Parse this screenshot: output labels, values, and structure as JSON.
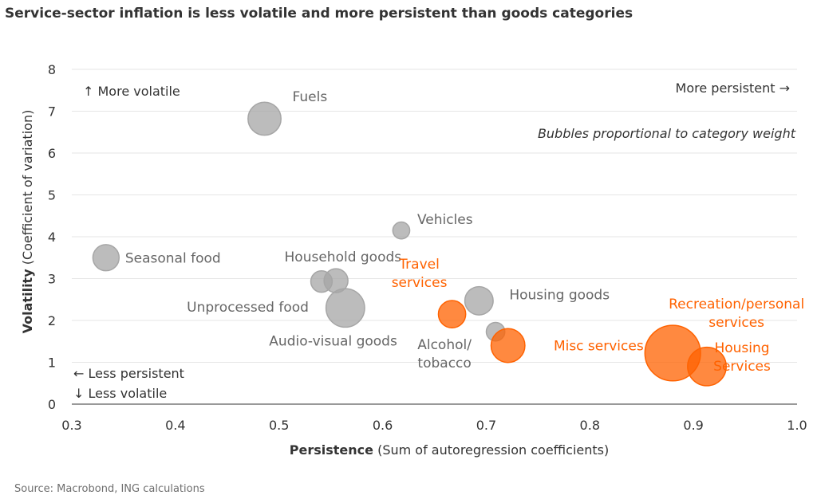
{
  "title": "Service-sector inflation is less volatile and more persistent than goods categories",
  "source": "Source: Macrobond, ING calculations",
  "colors": {
    "goods": "#a6a6a6",
    "services": "#ff6200",
    "grid": "#e6e6e6",
    "text": "#333333"
  },
  "chart_data": {
    "type": "scatter",
    "xlabel_bold": "Persistence",
    "xlabel_rest": " (Sum of autoregression coefficients)",
    "ylabel_bold": "Volatility",
    "ylabel_rest": " (Coefficient of variation)",
    "xlim": [
      0.3,
      1.0
    ],
    "ylim": [
      0,
      8
    ],
    "xticks": [
      "0.3",
      "0.4",
      "0.5",
      "0.6",
      "0.7",
      "0.8",
      "0.9",
      "1.0"
    ],
    "yticks": [
      "0",
      "1",
      "2",
      "3",
      "4",
      "5",
      "6",
      "7",
      "8"
    ],
    "grid": "horizontal",
    "annotations": {
      "top_left": "↑ More volatile",
      "top_right": "More persistent →",
      "note": "Bubbles proportional to category weight",
      "bottom_left_1": "← Less persistent",
      "bottom_left_2": "↓ Less volatile"
    },
    "points": [
      {
        "label": [
          "Fuels"
        ],
        "x": 0.486,
        "y": 6.82,
        "group": "goods",
        "weight": 1.9
      },
      {
        "label": [
          "Seasonal food"
        ],
        "x": 0.333,
        "y": 3.5,
        "group": "goods",
        "weight": 1.2
      },
      {
        "label": [
          "Vehicles"
        ],
        "x": 0.618,
        "y": 4.15,
        "group": "goods",
        "weight": 0.5
      },
      {
        "label": [
          "Household goods"
        ],
        "x": 0.555,
        "y": 2.95,
        "group": "goods",
        "weight": 1.0
      },
      {
        "label": [
          "Unprocessed food"
        ],
        "x": 0.541,
        "y": 2.93,
        "group": "goods",
        "weight": 0.8
      },
      {
        "label": [
          "Audio-visual goods"
        ],
        "x": 0.564,
        "y": 2.3,
        "group": "goods",
        "weight": 2.6
      },
      {
        "label": [
          "Housing goods"
        ],
        "x": 0.693,
        "y": 2.47,
        "group": "goods",
        "weight": 1.4
      },
      {
        "label": [
          "Alcohol/",
          "tobacco"
        ],
        "x": 0.709,
        "y": 1.73,
        "group": "goods",
        "weight": 0.6
      },
      {
        "label": [
          "Travel",
          "services"
        ],
        "x": 0.667,
        "y": 2.15,
        "group": "services",
        "weight": 1.3
      },
      {
        "label": [
          "Misc services"
        ],
        "x": 0.721,
        "y": 1.4,
        "group": "services",
        "weight": 2.0
      },
      {
        "label": [
          "Recreation/personal",
          "services"
        ],
        "x": 0.88,
        "y": 1.22,
        "group": "services",
        "weight": 5.4
      },
      {
        "label": [
          "Housing",
          "Services"
        ],
        "x": 0.913,
        "y": 0.9,
        "group": "services",
        "weight": 2.6
      }
    ]
  }
}
